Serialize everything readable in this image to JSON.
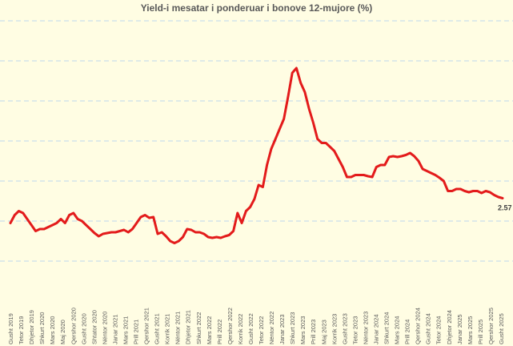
{
  "chart_data": {
    "type": "line",
    "title": "Yield-i mesatar i ponderuar i bonove 12-mujore (%)",
    "xlabel": "",
    "ylabel": "",
    "ylim": [
      0,
      7
    ],
    "grid": "horizontal dashed",
    "legend": "none",
    "colors": {
      "line": "#e31b1b",
      "grid": "#bcd6ee",
      "background": "#fffde3",
      "text": "#595959"
    },
    "x_tick_labels": [
      "Gusht 2019",
      "Tetor 2019",
      "Dhjetor 2019",
      "Shkurt 2020",
      "Mars 2020",
      "Maj 2020",
      "Qershor 2020",
      "Gusht 2020",
      "Shtator 2020",
      "Nëntor 2020",
      "Janar 2021",
      "Mars 2021",
      "Prill 2021",
      "Qershor 2021",
      "Gusht 2021",
      "Korrik 2021",
      "Nëntor 2021",
      "Dhjetor 2021",
      "Shkurt 2022",
      "Mars 2022",
      "Prill 2022",
      "Qershor 2022",
      "Korrik 2022",
      "Gusht 2022",
      "Tetor 2022",
      "Nëntor 2022",
      "Janar 2023",
      "Shkurt 2023",
      "Mars 2023",
      "Prill 2023",
      "Maj 2023",
      "Korrik 2023",
      "Gusht 2023",
      "Tetor 2023",
      "Nëntor 2023",
      "Janar 2024",
      "Shkurt 2024",
      "Mars 2024",
      "Prill 2024",
      "Qershor 2024",
      "Gusht 2024",
      "Tetor 2024",
      "Dhjetor 2024",
      "Janar 2025",
      "Mars 2025",
      "Prill 2025",
      "Qershor 2025",
      "Gusht 2025"
    ],
    "end_label": "2.57",
    "series": [
      {
        "values": [
          1.95,
          2.15,
          2.25,
          2.2,
          2.05,
          1.9,
          1.75,
          1.8,
          1.8,
          1.85,
          1.9,
          1.95,
          2.05,
          1.95,
          2.15,
          2.2,
          2.05,
          2.0,
          1.9,
          1.8,
          1.7,
          1.62,
          1.68,
          1.7,
          1.72,
          1.72,
          1.75,
          1.78,
          1.72,
          1.8,
          1.95,
          2.1,
          2.15,
          2.08,
          2.1,
          1.68,
          1.72,
          1.62,
          1.5,
          1.45,
          1.5,
          1.6,
          1.8,
          1.78,
          1.72,
          1.72,
          1.68,
          1.6,
          1.58,
          1.6,
          1.58,
          1.62,
          1.65,
          1.75,
          2.2,
          1.95,
          2.25,
          2.35,
          2.55,
          2.9,
          2.85,
          3.4,
          3.8,
          4.05,
          4.3,
          4.55,
          5.1,
          5.7,
          5.82,
          5.45,
          5.22,
          4.8,
          4.45,
          4.05,
          3.95,
          3.95,
          3.85,
          3.75,
          3.55,
          3.35,
          3.1,
          3.1,
          3.15,
          3.15,
          3.15,
          3.12,
          3.1,
          3.35,
          3.4,
          3.4,
          3.6,
          3.62,
          3.6,
          3.62,
          3.65,
          3.7,
          3.62,
          3.5,
          3.3,
          3.25,
          3.2,
          3.15,
          3.08,
          3.0,
          2.75,
          2.75,
          2.8,
          2.8,
          2.75,
          2.72,
          2.75,
          2.75,
          2.7,
          2.75,
          2.72,
          2.65,
          2.6,
          2.57
        ]
      }
    ]
  }
}
